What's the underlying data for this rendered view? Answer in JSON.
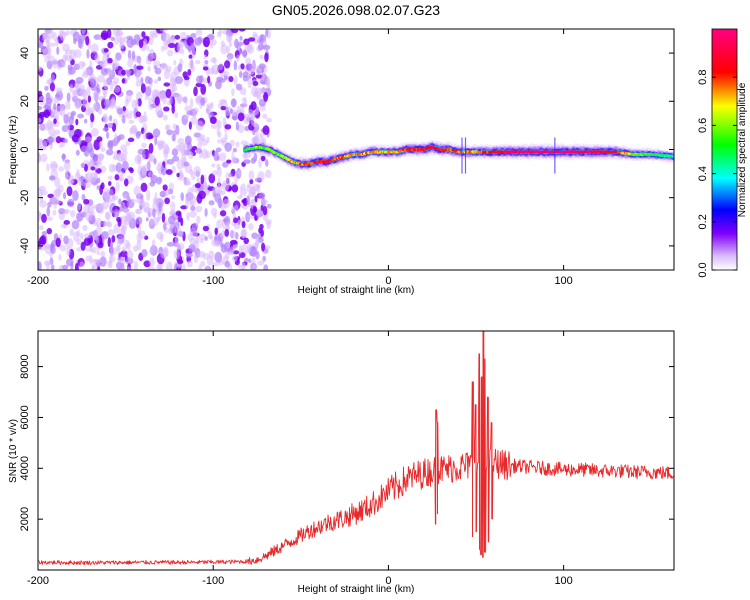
{
  "title": "GN05.2026.098.02.07.G23",
  "chart_data": [
    {
      "type": "heatmap",
      "title": "GN05.2026.098.02.07.G23",
      "xlabel": "Height of straight line (km)",
      "ylabel": "Frequency (Hz)",
      "xlim": [
        -200,
        163
      ],
      "ylim": [
        -50,
        50
      ],
      "xticks": [
        -200,
        -100,
        0,
        100
      ],
      "xtick_labels": [
        "-200",
        "-100",
        "0",
        "100"
      ],
      "yticks": [
        -40,
        -20,
        0,
        20,
        40
      ],
      "ytick_labels": [
        "-40",
        "-20",
        "0",
        "20",
        "40"
      ],
      "noise_region": [
        -200,
        -68
      ],
      "signal_start": -82,
      "ridge": {
        "x": [
          -82,
          -75,
          -68,
          -60,
          -55,
          -50,
          -45,
          -40,
          -35,
          -30,
          -25,
          -20,
          -15,
          -10,
          -5,
          0,
          5,
          10,
          15,
          20,
          25,
          30,
          35,
          40,
          45,
          50,
          60,
          70,
          80,
          90,
          100,
          110,
          120,
          130,
          140,
          150,
          163
        ],
        "f": [
          0,
          1,
          0,
          -3,
          -5,
          -6,
          -6,
          -5,
          -5,
          -4,
          -3,
          -2,
          -2,
          -1,
          -1,
          -1,
          -1,
          0,
          0,
          0,
          1,
          0,
          0,
          -1,
          -1,
          -1,
          -1,
          -1,
          -1,
          -1,
          -1,
          -1,
          -1,
          -1,
          -2,
          -2,
          -3
        ],
        "amp": [
          0.45,
          0.6,
          0.55,
          0.6,
          0.7,
          0.75,
          0.8,
          0.85,
          0.85,
          0.8,
          0.75,
          0.7,
          0.75,
          0.75,
          0.7,
          0.72,
          0.75,
          0.8,
          0.82,
          0.85,
          0.88,
          0.85,
          0.8,
          0.75,
          0.72,
          0.75,
          0.85,
          0.92,
          0.95,
          0.98,
          0.97,
          0.95,
          0.92,
          0.85,
          0.6,
          0.5,
          0.45
        ]
      },
      "colorbar": {
        "label": "Normalized spectral amplitude",
        "range": [
          0,
          1
        ],
        "ticks": [
          0.0,
          0.2,
          0.4,
          0.6,
          0.8
        ],
        "tick_labels": [
          "0.0",
          "0.2",
          "0.4",
          "0.6",
          "0.8"
        ],
        "colors": [
          "#ffffff",
          "#8000ff",
          "#0000ff",
          "#00ffff",
          "#00ff00",
          "#ffff00",
          "#ff0000",
          "#ff0080"
        ]
      }
    },
    {
      "type": "line",
      "xlabel": "Height of straight line (km)",
      "ylabel": "SNR (10 * v/v)",
      "xlim": [
        -200,
        163
      ],
      "ylim": [
        0,
        9400
      ],
      "xticks": [
        -200,
        -100,
        0,
        100
      ],
      "xtick_labels": [
        "-200",
        "-100",
        "0",
        "100"
      ],
      "yticks": [
        2000,
        4000,
        6000,
        8000
      ],
      "ytick_labels": [
        "2000",
        "4000",
        "6000",
        "8000"
      ],
      "color": "#e8292b",
      "series": [
        {
          "name": "SNR",
          "x": [
            -200,
            -180,
            -160,
            -140,
            -120,
            -100,
            -90,
            -80,
            -75,
            -70,
            -65,
            -60,
            -55,
            -50,
            -45,
            -40,
            -35,
            -30,
            -25,
            -20,
            -15,
            -10,
            -5,
            0,
            5,
            10,
            15,
            20,
            25,
            30,
            35,
            40,
            45,
            50,
            55,
            60,
            65,
            70,
            80,
            90,
            100,
            110,
            120,
            130,
            140,
            150,
            163
          ],
          "values": [
            300,
            290,
            290,
            300,
            300,
            310,
            320,
            340,
            400,
            550,
            750,
            950,
            1150,
            1350,
            1550,
            1700,
            1850,
            1950,
            2050,
            2200,
            2350,
            2550,
            2800,
            3100,
            3300,
            3550,
            3700,
            3800,
            3900,
            3950,
            4000,
            4050,
            4100,
            4100,
            4150,
            4250,
            4150,
            4100,
            4050,
            4000,
            3950,
            3950,
            3900,
            3900,
            3850,
            3850,
            3800
          ]
        }
      ],
      "spikes": [
        {
          "x": 27,
          "high": 6300,
          "low": 1800
        },
        {
          "x": 28,
          "high": 5800,
          "low": 2200
        },
        {
          "x": 48,
          "high": 7400,
          "low": 1300
        },
        {
          "x": 50,
          "high": 6500,
          "low": 1500
        },
        {
          "x": 52,
          "high": 8500,
          "low": 800
        },
        {
          "x": 53,
          "high": 7600,
          "low": 600
        },
        {
          "x": 54,
          "high": 9400,
          "low": 500
        },
        {
          "x": 55,
          "high": 8300,
          "low": 700
        },
        {
          "x": 57,
          "high": 6800,
          "low": 1100
        },
        {
          "x": 59,
          "high": 5800,
          "low": 2000
        }
      ]
    }
  ]
}
